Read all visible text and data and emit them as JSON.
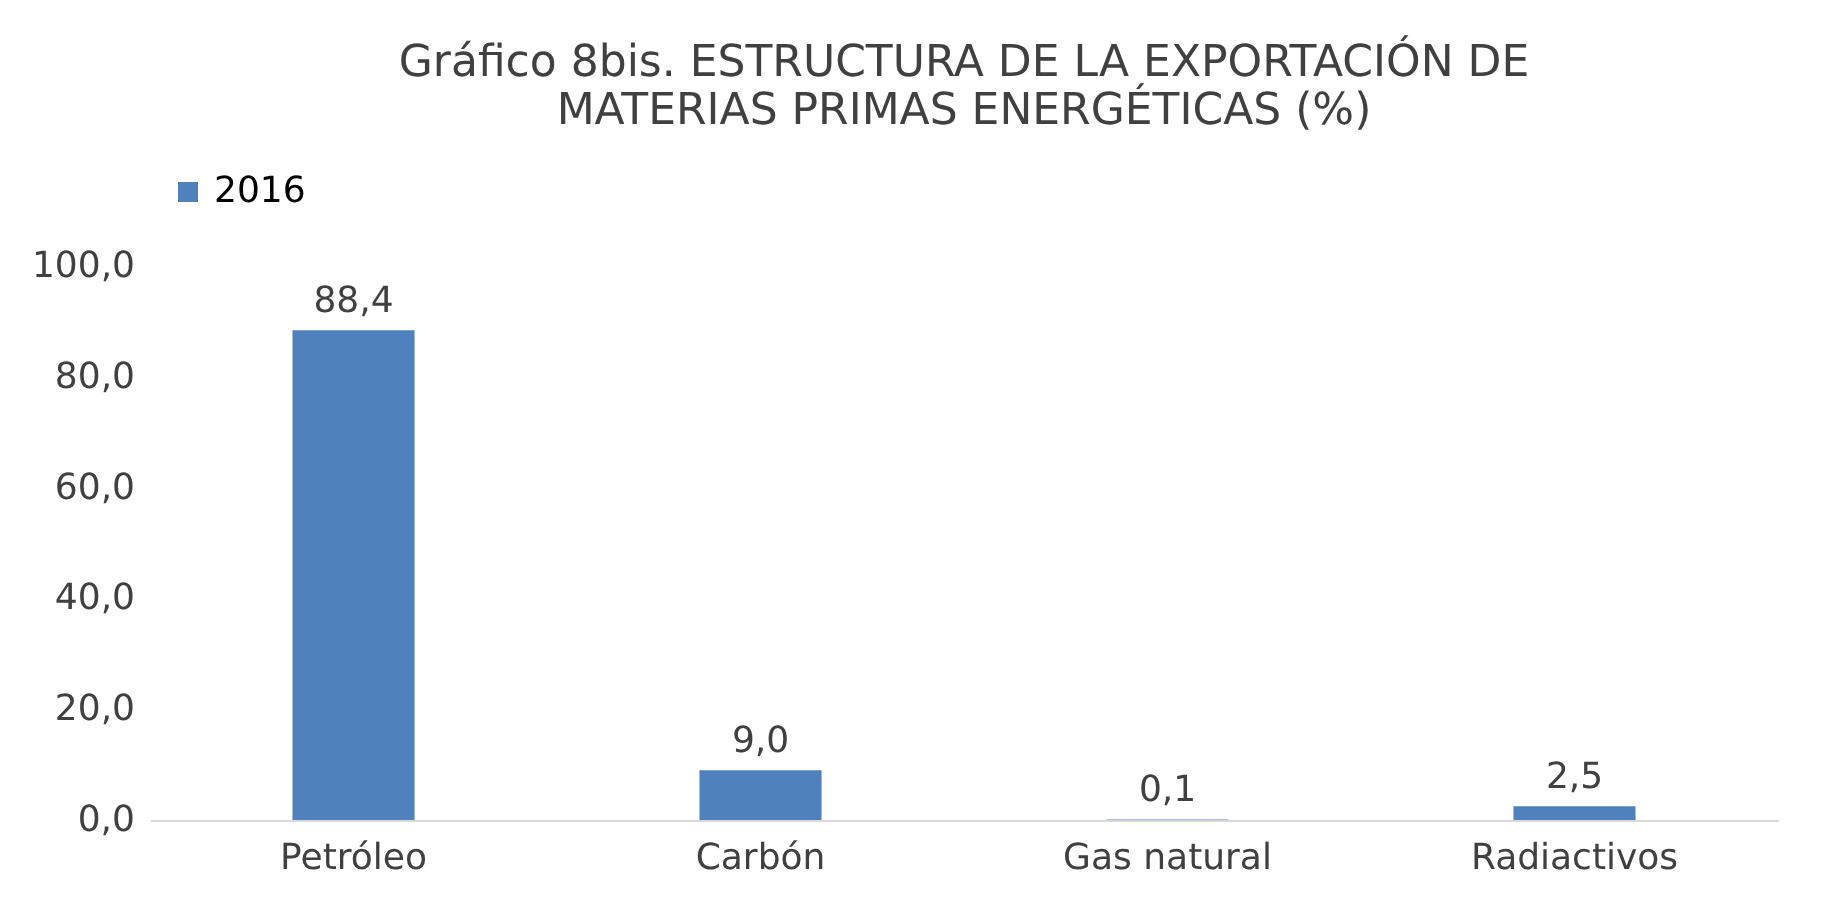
{
  "chart_data": {
    "type": "bar",
    "title": "Gráfico 8bis.  ESTRUCTURA DE LA EXPORTACIÓN DE MATERIAS PRIMAS ENERGÉTICAS (%)",
    "categories": [
      "Petróleo",
      "Carbón",
      "Gas natural",
      "Radiactivos"
    ],
    "series": [
      {
        "name": "2016",
        "color": "#4f81bd",
        "values": [
          88.4,
          9.0,
          0.1,
          2.5
        ],
        "value_labels": [
          "88,4",
          "9,0",
          "0,1",
          "2,5"
        ]
      }
    ],
    "ylim": [
      0,
      100
    ],
    "yticks": [
      {
        "value": 0,
        "label": "0,0"
      },
      {
        "value": 20,
        "label": "20,0"
      },
      {
        "value": 40,
        "label": "40,0"
      },
      {
        "value": 60,
        "label": "60,0"
      },
      {
        "value": 80,
        "label": "80,0"
      },
      {
        "value": 100,
        "label": "100,0"
      }
    ],
    "legend": "top"
  }
}
